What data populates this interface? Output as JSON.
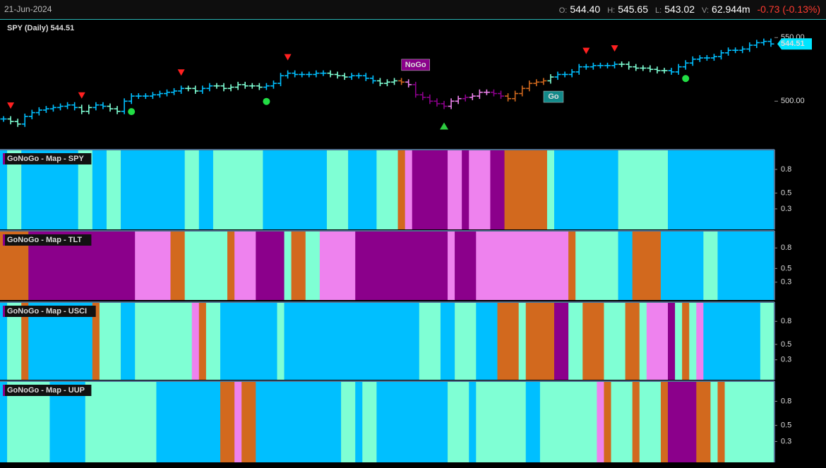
{
  "header": {
    "date": "21-Jun-2024",
    "quote": [
      {
        "label": "O:",
        "value": "544.40"
      },
      {
        "label": "H:",
        "value": "545.65"
      },
      {
        "label": "L:",
        "value": "543.02"
      },
      {
        "label": "V:",
        "value": "62.944m"
      }
    ],
    "change": "-0.73 (-0.13%)"
  },
  "chart_data": [
    {
      "type": "price-bars",
      "title": "SPY (Daily) 544.51",
      "last_label": "544.51",
      "closes": [
        486,
        484,
        482,
        488,
        491,
        493,
        494,
        495,
        496,
        497,
        495,
        492,
        495,
        497,
        496,
        494,
        492,
        500,
        504,
        504,
        504,
        505,
        506,
        507,
        508,
        510,
        510,
        508,
        510,
        512,
        512,
        510,
        511,
        513,
        512,
        512,
        511,
        512,
        514,
        520,
        522,
        521,
        521,
        521,
        522,
        522,
        521,
        520,
        519,
        520,
        520,
        518,
        516,
        514,
        515,
        516,
        515,
        513,
        505,
        503,
        500,
        498,
        496,
        500,
        502,
        503,
        504,
        507,
        507,
        506,
        504,
        502,
        506,
        510,
        514,
        515,
        516,
        519,
        521,
        521,
        523,
        527,
        527,
        528,
        528,
        528,
        529,
        529,
        527,
        526,
        526,
        525,
        524,
        524,
        523,
        527,
        530,
        533,
        534,
        534,
        535,
        538,
        540,
        540,
        541,
        544,
        546,
        547,
        545
      ],
      "ylim": [
        463,
        564
      ],
      "yticks": [
        {
          "value": 500,
          "label": "500.00"
        },
        {
          "value": 550,
          "label": "550.00"
        }
      ],
      "annotations": [
        {
          "text": "NoGo",
          "bar": 57
        },
        {
          "text": "Go",
          "bar": 77
        }
      ],
      "signals": {
        "down": [
          1,
          11,
          25,
          40,
          82,
          86
        ],
        "up": [
          62
        ],
        "dots": [
          18,
          37,
          96
        ]
      }
    },
    {
      "type": "heatmap",
      "title": "GoNoGo - Map - SPY",
      "ylim": [
        0.04,
        1.05
      ],
      "yticks": [
        0.8,
        0.5,
        0.3
      ],
      "runs": [
        [
          "#00bfff",
          1
        ],
        [
          "#7fffd4",
          2
        ],
        [
          "#00bfff",
          8
        ],
        [
          "#7fffd4",
          2
        ],
        [
          "#00bfff",
          2
        ],
        [
          "#7fffd4",
          2
        ],
        [
          "#00bfff",
          9
        ],
        [
          "#7fffd4",
          2
        ],
        [
          "#00bfff",
          2
        ],
        [
          "#7fffd4",
          7
        ],
        [
          "#00bfff",
          9
        ],
        [
          "#7fffd4",
          3
        ],
        [
          "#00bfff",
          4
        ],
        [
          "#7fffd4",
          3
        ],
        [
          "#d2691e",
          1
        ],
        [
          "#ee82ee",
          1
        ],
        [
          "#8b008b",
          5
        ],
        [
          "#ee82ee",
          2
        ],
        [
          "#8b008b",
          1
        ],
        [
          "#ee82ee",
          3
        ],
        [
          "#8b008b",
          2
        ],
        [
          "#d2691e",
          6
        ],
        [
          "#7fffd4",
          1
        ],
        [
          "#00bfff",
          9
        ],
        [
          "#7fffd4",
          7
        ],
        [
          "#00bfff",
          15
        ]
      ]
    },
    {
      "type": "heatmap",
      "title": "GoNoGo - Map - TLT",
      "ylim": [
        0.04,
        1.05
      ],
      "yticks": [
        0.8,
        0.5,
        0.3
      ],
      "runs": [
        [
          "#d2691e",
          4
        ],
        [
          "#8b008b",
          15
        ],
        [
          "#ee82ee",
          5
        ],
        [
          "#d2691e",
          2
        ],
        [
          "#7fffd4",
          6
        ],
        [
          "#d2691e",
          1
        ],
        [
          "#ee82ee",
          3
        ],
        [
          "#8b008b",
          4
        ],
        [
          "#7fffd4",
          1
        ],
        [
          "#d2691e",
          2
        ],
        [
          "#7fffd4",
          2
        ],
        [
          "#ee82ee",
          5
        ],
        [
          "#8b008b",
          13
        ],
        [
          "#ee82ee",
          1
        ],
        [
          "#8b008b",
          3
        ],
        [
          "#ee82ee",
          13
        ],
        [
          "#d2691e",
          1
        ],
        [
          "#7fffd4",
          6
        ],
        [
          "#00bfff",
          2
        ],
        [
          "#d2691e",
          4
        ],
        [
          "#00bfff",
          6
        ],
        [
          "#7fffd4",
          2
        ],
        [
          "#00bfff",
          8
        ]
      ]
    },
    {
      "type": "heatmap",
      "title": "GoNoGo - Map - USCI",
      "ylim": [
        0.04,
        1.05
      ],
      "yticks": [
        0.8,
        0.5,
        0.3
      ],
      "runs": [
        [
          "#00bfff",
          1
        ],
        [
          "#7fffd4",
          2
        ],
        [
          "#d2691e",
          1
        ],
        [
          "#00bfff",
          9
        ],
        [
          "#d2691e",
          1
        ],
        [
          "#7fffd4",
          3
        ],
        [
          "#00bfff",
          2
        ],
        [
          "#7fffd4",
          8
        ],
        [
          "#ee82ee",
          1
        ],
        [
          "#d2691e",
          1
        ],
        [
          "#7fffd4",
          2
        ],
        [
          "#00bfff",
          8
        ],
        [
          "#7fffd4",
          1
        ],
        [
          "#00bfff",
          19
        ],
        [
          "#7fffd4",
          3
        ],
        [
          "#00bfff",
          2
        ],
        [
          "#7fffd4",
          3
        ],
        [
          "#00bfff",
          3
        ],
        [
          "#d2691e",
          3
        ],
        [
          "#7fffd4",
          1
        ],
        [
          "#d2691e",
          4
        ],
        [
          "#8b008b",
          2
        ],
        [
          "#7fffd4",
          2
        ],
        [
          "#d2691e",
          3
        ],
        [
          "#7fffd4",
          3
        ],
        [
          "#d2691e",
          2
        ],
        [
          "#7fffd4",
          1
        ],
        [
          "#ee82ee",
          3
        ],
        [
          "#8b008b",
          1
        ],
        [
          "#7fffd4",
          1
        ],
        [
          "#d2691e",
          1
        ],
        [
          "#7fffd4",
          1
        ],
        [
          "#ee82ee",
          1
        ],
        [
          "#00bfff",
          8
        ],
        [
          "#7fffd4",
          2
        ]
      ]
    },
    {
      "type": "heatmap",
      "title": "GoNoGo - Map - UUP",
      "ylim": [
        0.04,
        1.05
      ],
      "yticks": [
        0.8,
        0.5,
        0.3
      ],
      "runs": [
        [
          "#00bfff",
          1
        ],
        [
          "#7fffd4",
          6
        ],
        [
          "#00bfff",
          5
        ],
        [
          "#7fffd4",
          10
        ],
        [
          "#00bfff",
          9
        ],
        [
          "#d2691e",
          2
        ],
        [
          "#ee82ee",
          1
        ],
        [
          "#d2691e",
          2
        ],
        [
          "#00bfff",
          12
        ],
        [
          "#7fffd4",
          2
        ],
        [
          "#00bfff",
          1
        ],
        [
          "#7fffd4",
          2
        ],
        [
          "#00bfff",
          10
        ],
        [
          "#7fffd4",
          3
        ],
        [
          "#00bfff",
          1
        ],
        [
          "#7fffd4",
          7
        ],
        [
          "#00bfff",
          2
        ],
        [
          "#7fffd4",
          8
        ],
        [
          "#ee82ee",
          1
        ],
        [
          "#d2691e",
          1
        ],
        [
          "#7fffd4",
          3
        ],
        [
          "#d2691e",
          1
        ],
        [
          "#7fffd4",
          3
        ],
        [
          "#d2691e",
          1
        ],
        [
          "#8b008b",
          4
        ],
        [
          "#d2691e",
          2
        ],
        [
          "#7fffd4",
          1
        ],
        [
          "#d2691e",
          1
        ],
        [
          "#7fffd4",
          7
        ]
      ]
    }
  ]
}
